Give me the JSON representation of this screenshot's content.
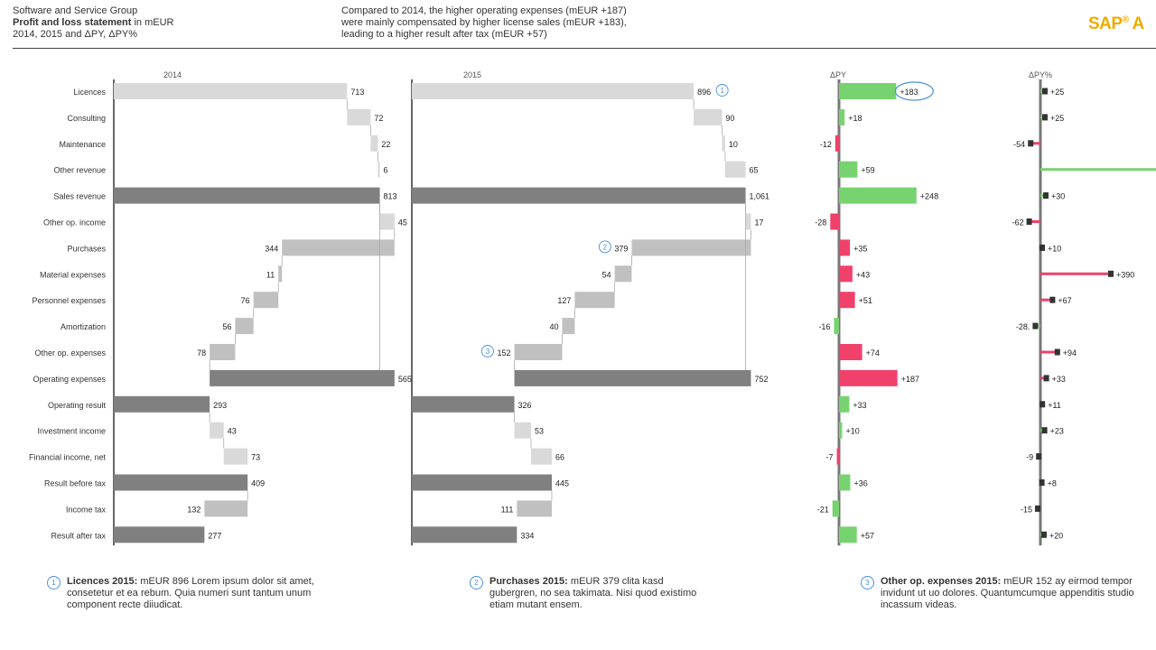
{
  "header": {
    "company": "Software and Service Group",
    "report": "Profit and loss statement",
    "unit": " in mEUR",
    "periods": "2014, 2015 and ΔPY, ΔPY%",
    "message": [
      "Compared to 2014, the higher operating expenses (mEUR +187)",
      "were mainly compensated by higher license sales (mEUR +183),",
      "leading to a higher result after tax (mEUR +57)"
    ],
    "logo": "SAP",
    "logo_reg": "®",
    "logo_tail": "A"
  },
  "colors": {
    "total": "#808080",
    "base": "#d9d9d9",
    "expense": "#c0c0c0",
    "pos": "#77d36f",
    "neg": "#f0416b",
    "note": "#4a90d9"
  },
  "chart_data": {
    "type": "waterfall",
    "column_titles": {
      "py": "2014",
      "ac": "2015",
      "dpy": "ΔPY",
      "dpyp": "ΔPY%"
    },
    "rows": [
      {
        "label": "Licences",
        "kind": "income",
        "py": 713,
        "ac": 896,
        "py_lbl": "713",
        "ac_lbl": "896",
        "dpy": 183,
        "dpy_lbl": "+183",
        "dpyp": 25,
        "dpyp_lbl": "+25",
        "note": "1"
      },
      {
        "label": "Consulting",
        "kind": "income",
        "py": 72,
        "ac": 90,
        "py_lbl": "72",
        "ac_lbl": "90",
        "dpy": 18,
        "dpy_lbl": "+18",
        "dpyp": 25,
        "dpyp_lbl": "+25"
      },
      {
        "label": "Maintenance",
        "kind": "income",
        "py": 22,
        "ac": 10,
        "py_lbl": "22",
        "ac_lbl": "10",
        "dpy": -12,
        "dpy_lbl": "-12",
        "dpyp": -54,
        "dpyp_lbl": "-54"
      },
      {
        "label": "Other revenue",
        "kind": "income",
        "py": 6,
        "ac": 65,
        "py_lbl": "6",
        "ac_lbl": "65",
        "dpy": 59,
        "dpy_lbl": "+59",
        "dpyp": 983,
        "dpyp_lbl": ""
      },
      {
        "label": "Sales revenue",
        "kind": "total",
        "py": 813,
        "ac": 1061,
        "py_lbl": "813",
        "ac_lbl": "1,061",
        "dpy": 248,
        "dpy_lbl": "+248",
        "dpyp": 30,
        "dpyp_lbl": "+30"
      },
      {
        "label": "Other op. income",
        "kind": "income",
        "py": 45,
        "ac": 17,
        "py_lbl": "45",
        "ac_lbl": "17",
        "dpy": -28,
        "dpy_lbl": "-28",
        "dpyp": -62,
        "dpyp_lbl": "-62"
      },
      {
        "label": "Purchases",
        "kind": "expense",
        "py": 344,
        "ac": 379,
        "py_lbl": "344",
        "ac_lbl": "379",
        "dpy": 35,
        "dpy_lbl": "+35",
        "dpyp": 10,
        "dpyp_lbl": "+10",
        "note": "2"
      },
      {
        "label": "Material expenses",
        "kind": "expense",
        "py": 11,
        "ac": 54,
        "py_lbl": "11",
        "ac_lbl": "54",
        "dpy": 43,
        "dpy_lbl": "+43",
        "dpyp": 390,
        "dpyp_lbl": "+390"
      },
      {
        "label": "Personnel expenses",
        "kind": "expense",
        "py": 76,
        "ac": 127,
        "py_lbl": "76",
        "ac_lbl": "127",
        "dpy": 51,
        "dpy_lbl": "+51",
        "dpyp": 67,
        "dpyp_lbl": "+67"
      },
      {
        "label": "Amortization",
        "kind": "expense",
        "py": 56,
        "ac": 40,
        "py_lbl": "56",
        "ac_lbl": "40",
        "dpy": -16,
        "dpy_lbl": "-16",
        "dpyp": -28,
        "dpyp_lbl": "-28."
      },
      {
        "label": "Other op. expenses",
        "kind": "expense",
        "py": 78,
        "ac": 152,
        "py_lbl": "78",
        "ac_lbl": "152",
        "dpy": 74,
        "dpy_lbl": "+74",
        "dpyp": 94,
        "dpyp_lbl": "+94",
        "note": "3"
      },
      {
        "label": "Operating expenses",
        "kind": "subtotal",
        "py": 565,
        "ac": 752,
        "py_lbl": "565",
        "ac_lbl": "752",
        "dpy": 187,
        "dpy_lbl": "+187",
        "dpyp": 33,
        "dpyp_lbl": "+33"
      },
      {
        "label": "Operating result",
        "kind": "total",
        "py": 293,
        "ac": 326,
        "py_lbl": "293",
        "ac_lbl": "326",
        "dpy": 33,
        "dpy_lbl": "+33",
        "dpyp": 11,
        "dpyp_lbl": "+11"
      },
      {
        "label": "Investment income",
        "kind": "income",
        "py": 43,
        "ac": 53,
        "py_lbl": "43",
        "ac_lbl": "53",
        "dpy": 10,
        "dpy_lbl": "+10",
        "dpyp": 23,
        "dpyp_lbl": "+23"
      },
      {
        "label": "Financial income, net",
        "kind": "income",
        "py": 73,
        "ac": 66,
        "py_lbl": "73",
        "ac_lbl": "66",
        "dpy": -7,
        "dpy_lbl": "-7",
        "dpyp": -9,
        "dpyp_lbl": "-9"
      },
      {
        "label": "Result before tax",
        "kind": "total",
        "py": 409,
        "ac": 445,
        "py_lbl": "409",
        "ac_lbl": "445",
        "dpy": 36,
        "dpy_lbl": "+36",
        "dpyp": 8,
        "dpyp_lbl": "+8"
      },
      {
        "label": "Income tax",
        "kind": "expense",
        "py": 132,
        "ac": 111,
        "py_lbl": "132",
        "ac_lbl": "111",
        "dpy": -21,
        "dpy_lbl": "-21",
        "dpyp": -15,
        "dpyp_lbl": "-15"
      },
      {
        "label": "Result after tax",
        "kind": "total",
        "py": 277,
        "ac": 334,
        "py_lbl": "277",
        "ac_lbl": "334",
        "dpy": 57,
        "dpy_lbl": "+57",
        "dpyp": 20,
        "dpyp_lbl": "+20"
      }
    ],
    "highlight": {
      "row": "Licences",
      "column": "dpy"
    }
  },
  "notes": [
    {
      "num": "1",
      "title": "Licences 2015:",
      "text": " mEUR 896 Lorem ipsum dolor sit amet, consetetur et ea rebum. Quia numeri sunt tantum unum component recte diiudicat."
    },
    {
      "num": "2",
      "title": "Purchases 2015:",
      "text": " mEUR 379 clita kasd gubergren, no sea takimata. Nisi quod existimo etiam mutant ensem."
    },
    {
      "num": "3",
      "title": "Other op. expenses 2015:",
      "text": " mEUR 152 ay eirmod tempor invidunt ut uo dolores. Quantumcumque appenditis studio incassum videas."
    }
  ]
}
